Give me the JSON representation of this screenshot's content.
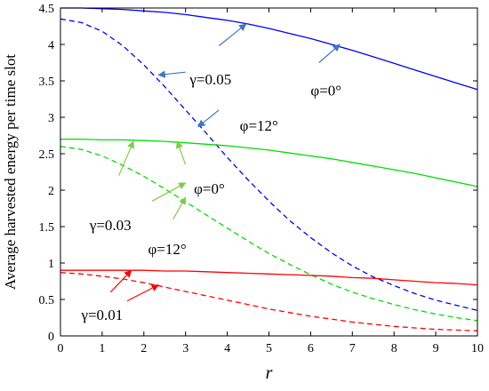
{
  "chart_data": {
    "type": "line",
    "xlabel": "r",
    "ylabel": "Average harvested energy per time slot",
    "xlim": [
      0,
      10
    ],
    "ylim": [
      0,
      4.5
    ],
    "xticks": [
      "0",
      "1",
      "2",
      "3",
      "4",
      "5",
      "6",
      "7",
      "8",
      "9",
      "10"
    ],
    "yticks": [
      "0",
      "0.5",
      "1",
      "1.5",
      "2",
      "2.5",
      "3",
      "3.5",
      "4",
      "4.5"
    ],
    "grid": false,
    "x": [
      0,
      0.5,
      1,
      1.5,
      2,
      2.5,
      3,
      3.5,
      4,
      4.5,
      5,
      5.5,
      6,
      6.5,
      7,
      7.5,
      8,
      8.5,
      9,
      9.5,
      10
    ],
    "series": [
      {
        "color": "#0000ff",
        "style": "solid",
        "values": [
          4.5,
          4.5,
          4.49,
          4.48,
          4.46,
          4.44,
          4.41,
          4.37,
          4.33,
          4.28,
          4.22,
          4.15,
          4.08,
          4.0,
          3.92,
          3.83,
          3.74,
          3.65,
          3.56,
          3.47,
          3.38
        ]
      },
      {
        "color": "#0000ff",
        "style": "dashed",
        "values": [
          4.35,
          4.3,
          4.18,
          3.98,
          3.72,
          3.42,
          3.1,
          2.78,
          2.45,
          2.14,
          1.85,
          1.58,
          1.35,
          1.14,
          0.96,
          0.81,
          0.69,
          0.58,
          0.49,
          0.42,
          0.35
        ]
      },
      {
        "color": "#00dd00",
        "style": "solid",
        "values": [
          2.7,
          2.7,
          2.69,
          2.69,
          2.68,
          2.67,
          2.65,
          2.63,
          2.61,
          2.58,
          2.55,
          2.51,
          2.47,
          2.43,
          2.38,
          2.33,
          2.28,
          2.23,
          2.17,
          2.11,
          2.05
        ]
      },
      {
        "color": "#00dd00",
        "style": "dashed",
        "values": [
          2.6,
          2.56,
          2.47,
          2.34,
          2.19,
          2.02,
          1.84,
          1.66,
          1.48,
          1.3,
          1.13,
          0.98,
          0.84,
          0.71,
          0.6,
          0.51,
          0.43,
          0.36,
          0.3,
          0.25,
          0.21
        ]
      },
      {
        "color": "#ff0000",
        "style": "solid",
        "values": [
          0.9,
          0.9,
          0.9,
          0.9,
          0.9,
          0.89,
          0.89,
          0.88,
          0.87,
          0.86,
          0.85,
          0.84,
          0.83,
          0.82,
          0.8,
          0.79,
          0.77,
          0.75,
          0.73,
          0.72,
          0.7
        ]
      },
      {
        "color": "#ff0000",
        "style": "dashed",
        "values": [
          0.87,
          0.85,
          0.82,
          0.78,
          0.73,
          0.67,
          0.61,
          0.55,
          0.49,
          0.43,
          0.37,
          0.32,
          0.27,
          0.23,
          0.19,
          0.16,
          0.13,
          0.11,
          0.09,
          0.08,
          0.07
        ]
      }
    ],
    "annotations": [
      {
        "text": "γ=0.05",
        "color": "#3b78c4",
        "at": [
          3.1,
          3.45
        ],
        "arrows": [
          [
            [
              2.35,
              3.58
            ],
            [
              3.0,
              3.62
            ]
          ],
          [
            [
              4.45,
              4.28
            ],
            [
              3.8,
              3.98
            ]
          ],
          [
            [
              3.3,
              2.87
            ],
            [
              3.8,
              3.1
            ]
          ]
        ]
      },
      {
        "text": "φ=0°",
        "color": "#3b78c4",
        "at": [
          6.0,
          3.3
        ],
        "arrows": [
          [
            [
              6.7,
              4.0
            ],
            [
              6.2,
              3.75
            ]
          ]
        ]
      },
      {
        "text": "φ=12°",
        "color": "#3b78c4",
        "at": [
          4.3,
          2.82
        ],
        "arrows": []
      },
      {
        "text": "γ=0.03",
        "color": "#7ccc4a",
        "at": [
          0.7,
          1.45
        ],
        "arrows": [
          [
            [
              1.75,
              2.67
            ],
            [
              1.4,
              2.2
            ]
          ],
          [
            [
              3.0,
              2.1
            ],
            [
              2.2,
              1.85
            ]
          ]
        ]
      },
      {
        "text": "φ=0°",
        "color": "#7ccc4a",
        "at": [
          3.2,
          1.95
        ],
        "arrows": [
          [
            [
              2.8,
              2.67
            ],
            [
              3.0,
              2.35
            ]
          ]
        ]
      },
      {
        "text": "φ=12°",
        "color": "#7ccc4a",
        "at": [
          2.1,
          1.12
        ],
        "arrows": [
          [
            [
              3.0,
              1.9
            ],
            [
              2.7,
              1.6
            ]
          ]
        ]
      },
      {
        "text": "γ=0.01",
        "color": "#ff0000",
        "at": [
          0.5,
          0.22
        ],
        "arrows": [
          [
            [
              1.7,
              0.9
            ],
            [
              1.2,
              0.6
            ]
          ],
          [
            [
              2.35,
              0.7
            ],
            [
              1.6,
              0.48
            ]
          ]
        ]
      }
    ]
  }
}
